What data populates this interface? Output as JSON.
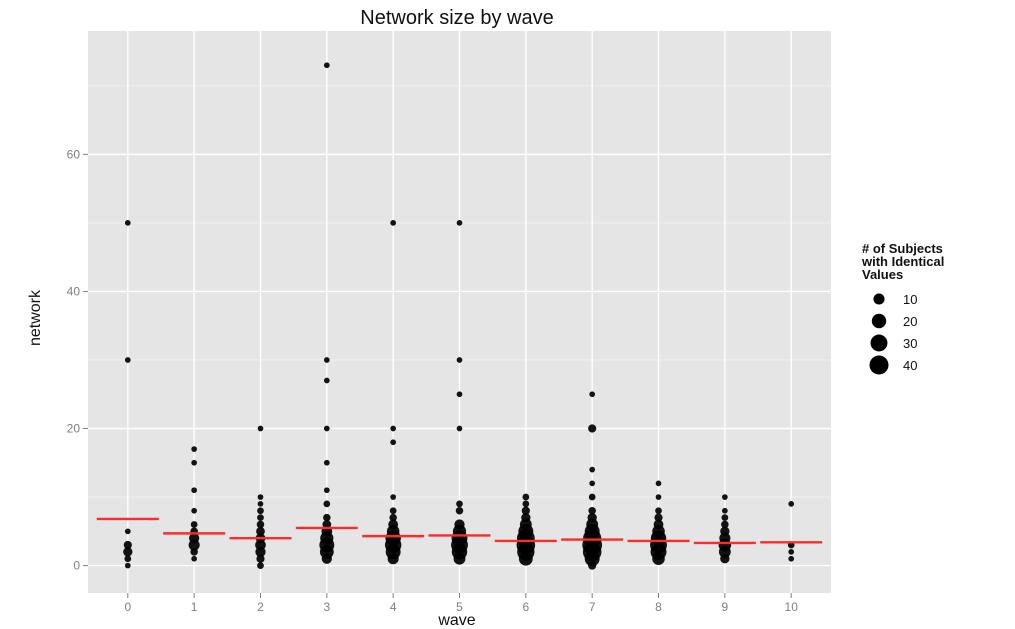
{
  "chart_data": {
    "type": "scatter",
    "title": "Network size by wave",
    "xlabel": "wave",
    "ylabel": "network",
    "x_ticks": [
      "0",
      "1",
      "2",
      "3",
      "4",
      "5",
      "6",
      "7",
      "8",
      "9",
      "10"
    ],
    "y_ticks": [
      "0",
      "20",
      "40",
      "60"
    ],
    "xlim": [
      -0.6,
      10.6
    ],
    "ylim": [
      -4,
      78
    ],
    "grid": true,
    "background": "#e5e5e5",
    "grid_color": "#ffffff",
    "point_color": "#000000",
    "mean_color": "#ff2a2a",
    "means": [
      {
        "wave": 0,
        "value": 6.8
      },
      {
        "wave": 1,
        "value": 4.7
      },
      {
        "wave": 2,
        "value": 4.0
      },
      {
        "wave": 3,
        "value": 5.5
      },
      {
        "wave": 4,
        "value": 4.3
      },
      {
        "wave": 5,
        "value": 4.4
      },
      {
        "wave": 6,
        "value": 3.6
      },
      {
        "wave": 7,
        "value": 3.8
      },
      {
        "wave": 8,
        "value": 3.6
      },
      {
        "wave": 9,
        "value": 3.3
      },
      {
        "wave": 10,
        "value": 3.4
      }
    ],
    "points": [
      {
        "wave": 0,
        "value": 0,
        "count": 1
      },
      {
        "wave": 0,
        "value": 1,
        "count": 2
      },
      {
        "wave": 0,
        "value": 2,
        "count": 6
      },
      {
        "wave": 0,
        "value": 3,
        "count": 4
      },
      {
        "wave": 0,
        "value": 5,
        "count": 1
      },
      {
        "wave": 0,
        "value": 30,
        "count": 1
      },
      {
        "wave": 0,
        "value": 50,
        "count": 1
      },
      {
        "wave": 1,
        "value": 1,
        "count": 1
      },
      {
        "wave": 1,
        "value": 2,
        "count": 3
      },
      {
        "wave": 1,
        "value": 3,
        "count": 10
      },
      {
        "wave": 1,
        "value": 4,
        "count": 8
      },
      {
        "wave": 1,
        "value": 5,
        "count": 3
      },
      {
        "wave": 1,
        "value": 6,
        "count": 2
      },
      {
        "wave": 1,
        "value": 8,
        "count": 1
      },
      {
        "wave": 1,
        "value": 11,
        "count": 1
      },
      {
        "wave": 1,
        "value": 15,
        "count": 1
      },
      {
        "wave": 1,
        "value": 17,
        "count": 1
      },
      {
        "wave": 2,
        "value": 0,
        "count": 2
      },
      {
        "wave": 2,
        "value": 1,
        "count": 4
      },
      {
        "wave": 2,
        "value": 2,
        "count": 8
      },
      {
        "wave": 2,
        "value": 3,
        "count": 9
      },
      {
        "wave": 2,
        "value": 4,
        "count": 7
      },
      {
        "wave": 2,
        "value": 5,
        "count": 5
      },
      {
        "wave": 2,
        "value": 6,
        "count": 3
      },
      {
        "wave": 2,
        "value": 7,
        "count": 2
      },
      {
        "wave": 2,
        "value": 8,
        "count": 2
      },
      {
        "wave": 2,
        "value": 9,
        "count": 1
      },
      {
        "wave": 2,
        "value": 10,
        "count": 1
      },
      {
        "wave": 2,
        "value": 20,
        "count": 1
      },
      {
        "wave": 3,
        "value": 1,
        "count": 8
      },
      {
        "wave": 3,
        "value": 2,
        "count": 18
      },
      {
        "wave": 3,
        "value": 3,
        "count": 22
      },
      {
        "wave": 3,
        "value": 4,
        "count": 16
      },
      {
        "wave": 3,
        "value": 5,
        "count": 9
      },
      {
        "wave": 3,
        "value": 6,
        "count": 5
      },
      {
        "wave": 3,
        "value": 7,
        "count": 3
      },
      {
        "wave": 3,
        "value": 9,
        "count": 2
      },
      {
        "wave": 3,
        "value": 11,
        "count": 1
      },
      {
        "wave": 3,
        "value": 15,
        "count": 1
      },
      {
        "wave": 3,
        "value": 20,
        "count": 1
      },
      {
        "wave": 3,
        "value": 27,
        "count": 1
      },
      {
        "wave": 3,
        "value": 30,
        "count": 1
      },
      {
        "wave": 3,
        "value": 73,
        "count": 1
      },
      {
        "wave": 4,
        "value": 1,
        "count": 10
      },
      {
        "wave": 4,
        "value": 2,
        "count": 22
      },
      {
        "wave": 4,
        "value": 3,
        "count": 28
      },
      {
        "wave": 4,
        "value": 4,
        "count": 24
      },
      {
        "wave": 4,
        "value": 5,
        "count": 14
      },
      {
        "wave": 4,
        "value": 6,
        "count": 7
      },
      {
        "wave": 4,
        "value": 7,
        "count": 3
      },
      {
        "wave": 4,
        "value": 8,
        "count": 2
      },
      {
        "wave": 4,
        "value": 10,
        "count": 1
      },
      {
        "wave": 4,
        "value": 18,
        "count": 1
      },
      {
        "wave": 4,
        "value": 20,
        "count": 1
      },
      {
        "wave": 4,
        "value": 50,
        "count": 1
      },
      {
        "wave": 5,
        "value": 1,
        "count": 12
      },
      {
        "wave": 5,
        "value": 2,
        "count": 24
      },
      {
        "wave": 5,
        "value": 3,
        "count": 30
      },
      {
        "wave": 5,
        "value": 4,
        "count": 26
      },
      {
        "wave": 5,
        "value": 5,
        "count": 16
      },
      {
        "wave": 5,
        "value": 6,
        "count": 8
      },
      {
        "wave": 5,
        "value": 8,
        "count": 3
      },
      {
        "wave": 5,
        "value": 9,
        "count": 2
      },
      {
        "wave": 5,
        "value": 20,
        "count": 1
      },
      {
        "wave": 5,
        "value": 25,
        "count": 1
      },
      {
        "wave": 5,
        "value": 30,
        "count": 1
      },
      {
        "wave": 5,
        "value": 50,
        "count": 1
      },
      {
        "wave": 6,
        "value": 1,
        "count": 18
      },
      {
        "wave": 6,
        "value": 2,
        "count": 32
      },
      {
        "wave": 6,
        "value": 3,
        "count": 38
      },
      {
        "wave": 6,
        "value": 4,
        "count": 34
      },
      {
        "wave": 6,
        "value": 5,
        "count": 22
      },
      {
        "wave": 6,
        "value": 6,
        "count": 12
      },
      {
        "wave": 6,
        "value": 7,
        "count": 6
      },
      {
        "wave": 6,
        "value": 8,
        "count": 4
      },
      {
        "wave": 6,
        "value": 9,
        "count": 2
      },
      {
        "wave": 6,
        "value": 10,
        "count": 2
      },
      {
        "wave": 7,
        "value": 0,
        "count": 4
      },
      {
        "wave": 7,
        "value": 1,
        "count": 22
      },
      {
        "wave": 7,
        "value": 2,
        "count": 38
      },
      {
        "wave": 7,
        "value": 3,
        "count": 44
      },
      {
        "wave": 7,
        "value": 4,
        "count": 36
      },
      {
        "wave": 7,
        "value": 5,
        "count": 22
      },
      {
        "wave": 7,
        "value": 6,
        "count": 12
      },
      {
        "wave": 7,
        "value": 7,
        "count": 6
      },
      {
        "wave": 7,
        "value": 8,
        "count": 3
      },
      {
        "wave": 7,
        "value": 10,
        "count": 2
      },
      {
        "wave": 7,
        "value": 12,
        "count": 1
      },
      {
        "wave": 7,
        "value": 14,
        "count": 1
      },
      {
        "wave": 7,
        "value": 20,
        "count": 4
      },
      {
        "wave": 7,
        "value": 25,
        "count": 1
      },
      {
        "wave": 8,
        "value": 1,
        "count": 14
      },
      {
        "wave": 8,
        "value": 2,
        "count": 26
      },
      {
        "wave": 8,
        "value": 3,
        "count": 30
      },
      {
        "wave": 8,
        "value": 4,
        "count": 24
      },
      {
        "wave": 8,
        "value": 5,
        "count": 14
      },
      {
        "wave": 8,
        "value": 6,
        "count": 7
      },
      {
        "wave": 8,
        "value": 7,
        "count": 4
      },
      {
        "wave": 8,
        "value": 8,
        "count": 2
      },
      {
        "wave": 8,
        "value": 10,
        "count": 1
      },
      {
        "wave": 8,
        "value": 12,
        "count": 1
      },
      {
        "wave": 9,
        "value": 1,
        "count": 6
      },
      {
        "wave": 9,
        "value": 2,
        "count": 12
      },
      {
        "wave": 9,
        "value": 3,
        "count": 14
      },
      {
        "wave": 9,
        "value": 4,
        "count": 10
      },
      {
        "wave": 9,
        "value": 5,
        "count": 6
      },
      {
        "wave": 9,
        "value": 6,
        "count": 3
      },
      {
        "wave": 9,
        "value": 7,
        "count": 2
      },
      {
        "wave": 9,
        "value": 8,
        "count": 1
      },
      {
        "wave": 9,
        "value": 10,
        "count": 1
      },
      {
        "wave": 10,
        "value": 1,
        "count": 1
      },
      {
        "wave": 10,
        "value": 2,
        "count": 1
      },
      {
        "wave": 10,
        "value": 3,
        "count": 2
      },
      {
        "wave": 10,
        "value": 9,
        "count": 1
      }
    ],
    "legend": {
      "title_lines": [
        "# of Subjects",
        "with Identical",
        "Values"
      ],
      "position": "right",
      "items": [
        {
          "label": "10",
          "count": 10
        },
        {
          "label": "20",
          "count": 20
        },
        {
          "label": "30",
          "count": 30
        },
        {
          "label": "40",
          "count": 40
        }
      ]
    }
  }
}
